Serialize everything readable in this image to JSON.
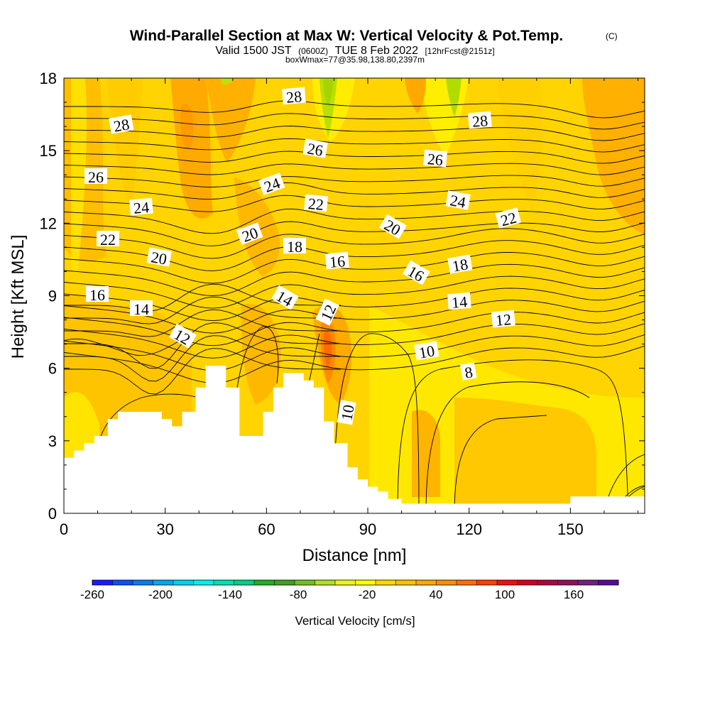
{
  "header": {
    "title": "Wind-Parallel Section at Max W: Vertical Velocity & Pot.Temp.",
    "title_mark": "(C)",
    "subtitle_a": "Valid 1500 JST",
    "subtitle_b": "(0600Z)",
    "subtitle_c": "TUE 8 Feb 2022",
    "subtitle_d": "[12hrFcst@2151z]",
    "subtitle3": "boxWmax=77@35.98,138.80,2397m"
  },
  "chart_data": {
    "type": "heatmap",
    "xlabel": "Distance [nm]",
    "ylabel": "Height [Kft MSL]",
    "xlim": [
      0,
      172
    ],
    "ylim": [
      0,
      18
    ],
    "x_ticks": [
      "0",
      "30",
      "60",
      "90",
      "120",
      "150"
    ],
    "y_ticks": [
      "0",
      "3",
      "6",
      "9",
      "12",
      "15",
      "18"
    ],
    "colorbar": {
      "label": "Vertical Velocity [cm/s]",
      "tick_labels": [
        "-260",
        "-200",
        "-140",
        "-80",
        "-20",
        "40",
        "100",
        "160"
      ],
      "colors": [
        "#1a1aff",
        "#0b50f5",
        "#0a7af0",
        "#00a8f0",
        "#00d0f0",
        "#00f0f0",
        "#00e0b0",
        "#00d080",
        "#20b020",
        "#40a020",
        "#70c020",
        "#b0e020",
        "#f0f020",
        "#ffff00",
        "#ffd800",
        "#ffc000",
        "#ffa800",
        "#ff8f00",
        "#ff7000",
        "#ff4000",
        "#f01010",
        "#d00020",
        "#b00040",
        "#901060",
        "#702080",
        "#5a0a9a"
      ]
    },
    "terrain": [
      [
        0,
        2.3
      ],
      [
        3,
        2.6
      ],
      [
        6,
        2.9
      ],
      [
        9,
        3.2
      ],
      [
        13,
        3.9
      ],
      [
        16,
        4.2
      ],
      [
        29,
        3.9
      ],
      [
        32,
        3.6
      ],
      [
        35,
        4.2
      ],
      [
        39,
        5.2
      ],
      [
        42,
        6.1
      ],
      [
        48,
        5.2
      ],
      [
        52,
        3.2
      ],
      [
        59,
        4.2
      ],
      [
        62,
        5.2
      ],
      [
        65,
        5.8
      ],
      [
        71,
        5.5
      ],
      [
        74,
        5.2
      ],
      [
        77,
        3.8
      ],
      [
        80,
        2.9
      ],
      [
        84,
        1.9
      ],
      [
        87,
        1.4
      ],
      [
        90,
        1.1
      ],
      [
        93,
        0.9
      ],
      [
        96,
        0.6
      ],
      [
        100,
        0.4
      ],
      [
        110,
        0.4
      ],
      [
        143,
        0.4
      ],
      [
        150,
        0.7
      ],
      [
        172,
        0.7
      ]
    ],
    "theta_labels": [
      "8",
      "10",
      "10",
      "12",
      "12",
      "12",
      "14",
      "14",
      "14",
      "16",
      "16",
      "16",
      "18",
      "18",
      "20",
      "20",
      "20",
      "22",
      "22",
      "22",
      "24",
      "24",
      "24",
      "26",
      "26",
      "26",
      "28",
      "28",
      "28"
    ],
    "updraft_max": "77"
  }
}
